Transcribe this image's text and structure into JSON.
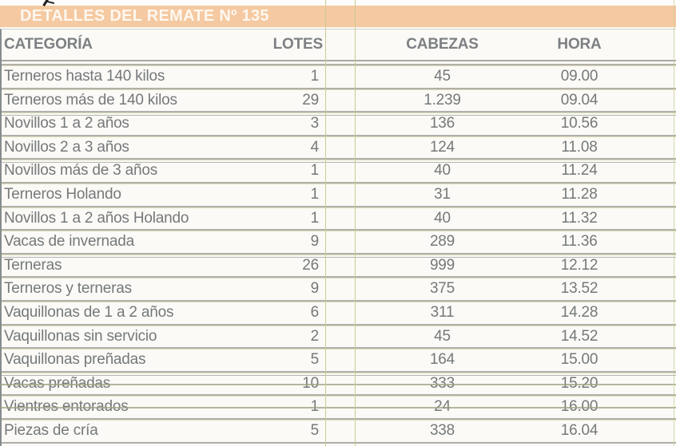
{
  "title": "DETALLES DEL REMATE Nº 135",
  "table": {
    "headers": {
      "categoria": "CATEGORÍA",
      "lotes": "LOTES",
      "cabezas": "CABEZAS",
      "hora": "HORA"
    },
    "rows": [
      {
        "categoria": "Terneros hasta 140 kilos",
        "lotes": "1",
        "cabezas": "45",
        "hora": "09.00"
      },
      {
        "categoria": "Terneros más de 140 kilos",
        "lotes": "29",
        "cabezas": "1.239",
        "hora": "09.04"
      },
      {
        "categoria": "Novillos 1 a 2 años",
        "lotes": "3",
        "cabezas": "136",
        "hora": "10.56"
      },
      {
        "categoria": "Novillos 2 a 3 años",
        "lotes": "4",
        "cabezas": "124",
        "hora": "11.08"
      },
      {
        "categoria": "Novillos más de 3 años",
        "lotes": "1",
        "cabezas": "40",
        "hora": "11.24"
      },
      {
        "categoria": "Terneros Holando",
        "lotes": "1",
        "cabezas": "31",
        "hora": "11.28"
      },
      {
        "categoria": "Novillos 1 a 2 años Holando",
        "lotes": "1",
        "cabezas": "40",
        "hora": "11.32"
      },
      {
        "categoria": "Vacas de invernada",
        "lotes": "9",
        "cabezas": "289",
        "hora": "11.36"
      },
      {
        "categoria": "Terneras",
        "lotes": "26",
        "cabezas": "999",
        "hora": "12.12"
      },
      {
        "categoria": "Terneros y terneras",
        "lotes": "9",
        "cabezas": "375",
        "hora": "13.52"
      },
      {
        "categoria": "Vaquillonas de 1 a 2 años",
        "lotes": "6",
        "cabezas": "311",
        "hora": "14.28"
      },
      {
        "categoria": "Vaquillonas sin servicio",
        "lotes": "2",
        "cabezas": "45",
        "hora": "14.52"
      },
      {
        "categoria": "Vaquillonas preñadas",
        "lotes": "5",
        "cabezas": "164",
        "hora": "15.00"
      },
      {
        "categoria": "Vacas preñadas",
        "lotes": "10",
        "cabezas": "333",
        "hora": "15.20",
        "struck": true
      },
      {
        "categoria": "Vientres entorados",
        "lotes": "1",
        "cabezas": "24",
        "hora": "16.00",
        "struck": true
      },
      {
        "categoria": "Piezas de cría",
        "lotes": "5",
        "cabezas": "338",
        "hora": "16.04"
      }
    ]
  },
  "colors": {
    "band_orange": "#f5c9a1",
    "grid_olive": "#c9cc93",
    "grid_gray": "#b1b0ac",
    "text_gray": "#75797b",
    "title_white": "#fef8f0"
  }
}
